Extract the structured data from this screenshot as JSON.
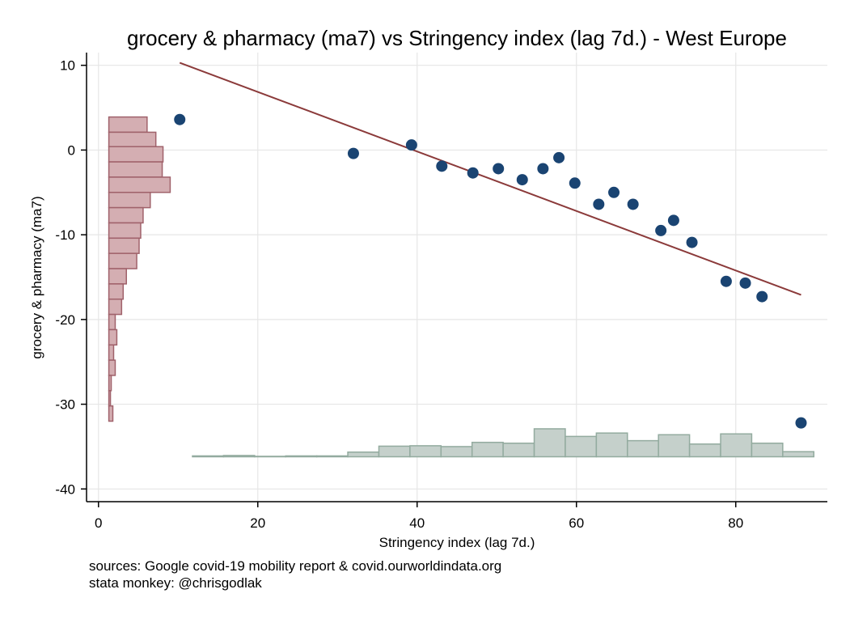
{
  "chart_data": {
    "type": "scatter",
    "title": "grocery & pharmacy (ma7) vs Stringency index (lag 7d.) - West Europe",
    "xlabel": "Stringency index (lag 7d.)",
    "ylabel": "grocery & pharmacy (ma7)",
    "xlim": [
      -1.5,
      91.5
    ],
    "ylim": [
      -41.5,
      11.5
    ],
    "xticks": [
      0,
      20,
      40,
      60,
      80
    ],
    "yticks": [
      10,
      0,
      -10,
      -20,
      -30,
      -40
    ],
    "grid": true,
    "colors": {
      "points": "#1a4472",
      "fit_line": "#8b3a3a",
      "hist_y_fill": "#d4aeb2",
      "hist_y_stroke": "#a0626b",
      "hist_x_fill": "#c5d0cb",
      "hist_x_stroke": "#93ab9f",
      "grid": "#e6e6e6"
    },
    "points": [
      {
        "x": 10.2,
        "y": 3.6
      },
      {
        "x": 32.0,
        "y": -0.4
      },
      {
        "x": 39.3,
        "y": 0.6
      },
      {
        "x": 43.1,
        "y": -1.9
      },
      {
        "x": 47.0,
        "y": -2.7
      },
      {
        "x": 50.2,
        "y": -2.2
      },
      {
        "x": 53.2,
        "y": -3.5
      },
      {
        "x": 55.8,
        "y": -2.2
      },
      {
        "x": 57.8,
        "y": -0.9
      },
      {
        "x": 59.8,
        "y": -3.9
      },
      {
        "x": 62.8,
        "y": -6.4
      },
      {
        "x": 64.7,
        "y": -5.0
      },
      {
        "x": 67.1,
        "y": -6.4
      },
      {
        "x": 70.6,
        "y": -9.5
      },
      {
        "x": 72.2,
        "y": -8.3
      },
      {
        "x": 74.5,
        "y": -10.9
      },
      {
        "x": 78.8,
        "y": -15.5
      },
      {
        "x": 81.2,
        "y": -15.7
      },
      {
        "x": 83.3,
        "y": -17.3
      },
      {
        "x": 88.2,
        "y": -32.2
      }
    ],
    "fit_line": {
      "x": [
        10.2,
        88.2
      ],
      "y": [
        10.3,
        -17.1
      ]
    },
    "y_histogram": {
      "baseline_x": 1.3,
      "bins": [
        {
          "y0": 2.1,
          "y1": 3.9,
          "length": 4.8
        },
        {
          "y0": 0.4,
          "y1": 2.1,
          "length": 5.9
        },
        {
          "y0": -1.4,
          "y1": 0.4,
          "length": 6.8
        },
        {
          "y0": -3.2,
          "y1": -1.4,
          "length": 6.7
        },
        {
          "y0": -5.0,
          "y1": -3.2,
          "length": 7.7
        },
        {
          "y0": -6.8,
          "y1": -5.0,
          "length": 5.2
        },
        {
          "y0": -8.6,
          "y1": -6.8,
          "length": 4.3
        },
        {
          "y0": -10.4,
          "y1": -8.6,
          "length": 4.0
        },
        {
          "y0": -12.2,
          "y1": -10.4,
          "length": 3.8
        },
        {
          "y0": -14.0,
          "y1": -12.2,
          "length": 3.5
        },
        {
          "y0": -15.8,
          "y1": -14.0,
          "length": 2.2
        },
        {
          "y0": -17.6,
          "y1": -15.8,
          "length": 1.8
        },
        {
          "y0": -19.4,
          "y1": -17.6,
          "length": 1.6
        },
        {
          "y0": -21.2,
          "y1": -19.4,
          "length": 0.8
        },
        {
          "y0": -23.0,
          "y1": -21.2,
          "length": 1.0
        },
        {
          "y0": -24.8,
          "y1": -23.0,
          "length": 0.6
        },
        {
          "y0": -26.6,
          "y1": -24.8,
          "length": 0.8
        },
        {
          "y0": -28.4,
          "y1": -26.6,
          "length": 0.3
        },
        {
          "y0": -30.2,
          "y1": -28.4,
          "length": 0.2
        },
        {
          "y0": -32.0,
          "y1": -30.2,
          "length": 0.5
        }
      ]
    },
    "x_histogram": {
      "baseline_y": -36.2,
      "bins": [
        {
          "x0": 11.8,
          "x1": 15.7,
          "height": 0.1
        },
        {
          "x0": 15.7,
          "x1": 19.6,
          "height": 0.15
        },
        {
          "x0": 19.6,
          "x1": 23.5,
          "height": 0.05
        },
        {
          "x0": 23.5,
          "x1": 27.4,
          "height": 0.1
        },
        {
          "x0": 27.4,
          "x1": 31.3,
          "height": 0.1
        },
        {
          "x0": 31.3,
          "x1": 35.2,
          "height": 0.55
        },
        {
          "x0": 35.2,
          "x1": 39.1,
          "height": 1.25
        },
        {
          "x0": 39.1,
          "x1": 43.0,
          "height": 1.3
        },
        {
          "x0": 43.0,
          "x1": 46.9,
          "height": 1.2
        },
        {
          "x0": 46.9,
          "x1": 50.8,
          "height": 1.7
        },
        {
          "x0": 50.8,
          "x1": 54.7,
          "height": 1.6
        },
        {
          "x0": 54.7,
          "x1": 58.6,
          "height": 3.3
        },
        {
          "x0": 58.6,
          "x1": 62.5,
          "height": 2.4
        },
        {
          "x0": 62.5,
          "x1": 66.4,
          "height": 2.8
        },
        {
          "x0": 66.4,
          "x1": 70.3,
          "height": 1.9
        },
        {
          "x0": 70.3,
          "x1": 74.2,
          "height": 2.6
        },
        {
          "x0": 74.2,
          "x1": 78.1,
          "height": 1.5
        },
        {
          "x0": 78.1,
          "x1": 82.0,
          "height": 2.7
        },
        {
          "x0": 82.0,
          "x1": 85.9,
          "height": 1.6
        },
        {
          "x0": 85.9,
          "x1": 89.8,
          "height": 0.6
        }
      ]
    }
  },
  "notes": [
    "sources: Google covid-19 mobility report & covid.ourworldindata.org",
    "stata monkey: @chrisgodlak"
  ]
}
